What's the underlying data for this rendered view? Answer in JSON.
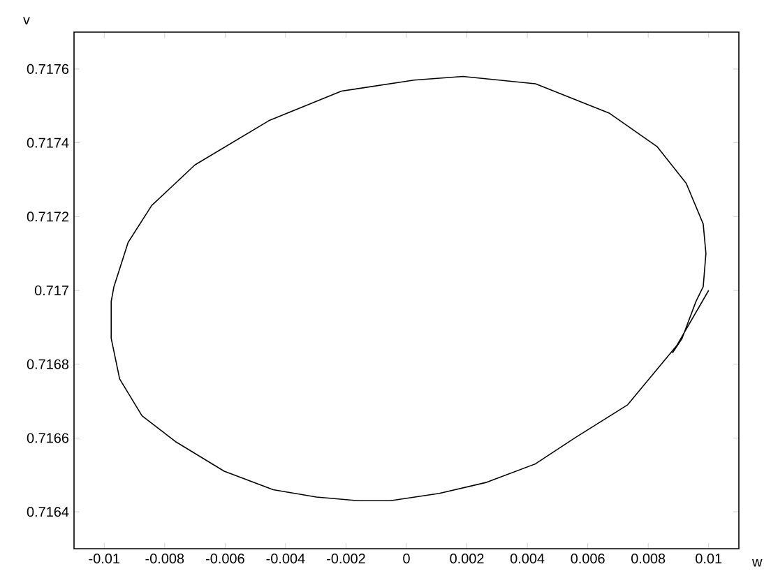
{
  "chart_data": {
    "type": "line",
    "xlabel": "w",
    "ylabel": "v",
    "xlim": [
      -0.011,
      0.011
    ],
    "ylim": [
      0.7163,
      0.7177
    ],
    "xticks": [
      -0.01,
      -0.008,
      -0.006,
      -0.004,
      -0.002,
      0,
      0.002,
      0.004,
      0.006,
      0.008,
      0.01
    ],
    "yticks": [
      0.7164,
      0.7166,
      0.7168,
      0.717,
      0.7172,
      0.7174,
      0.7176
    ],
    "marker": "none",
    "line_style": "solid",
    "series": [
      {
        "color": "#000000",
        "x": [
          0.01,
          0.00894,
          0.00732,
          0.00557,
          0.00427,
          0.00266,
          0.00109,
          -0.00053,
          -0.00159,
          -0.00298,
          -0.00441,
          -0.00603,
          -0.00764,
          -0.00875,
          -0.00949,
          -0.00977,
          -0.00977,
          -0.00968,
          -0.00921,
          -0.00843,
          -0.007,
          -0.00455,
          -0.00215,
          0.00025,
          0.00187,
          0.00427,
          0.00672,
          0.00829,
          0.00926,
          0.00982,
          0.00991,
          0.00982,
          0.00958,
          0.00912,
          0.0088
        ],
        "values": [
          0.717,
          0.71685,
          0.71669,
          0.7166,
          0.71653,
          0.71648,
          0.71645,
          0.71643,
          0.71643,
          0.71644,
          0.71646,
          0.71651,
          0.71659,
          0.71666,
          0.71676,
          0.71687,
          0.71697,
          0.71701,
          0.71713,
          0.71723,
          0.71734,
          0.71746,
          0.71754,
          0.71757,
          0.71758,
          0.71756,
          0.71748,
          0.71739,
          0.71729,
          0.71718,
          0.7171,
          0.71701,
          0.71697,
          0.71687,
          0.71683
        ]
      }
    ]
  }
}
